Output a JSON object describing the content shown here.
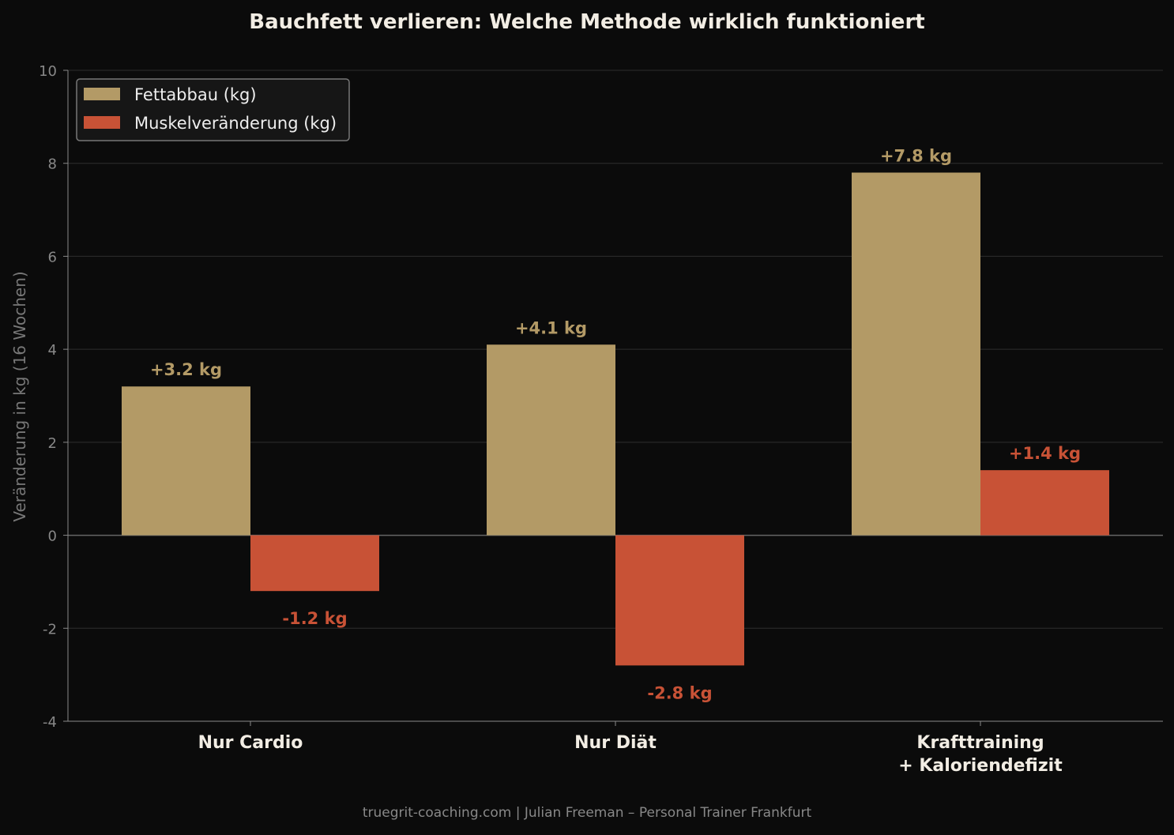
{
  "chart_data": {
    "type": "bar",
    "title": "Bauchfett verlieren: Welche Methode wirklich funktioniert",
    "ylabel": "Veränderung in kg (16 Wochen)",
    "xlabel": "",
    "ylim": [
      -4,
      10
    ],
    "yticks": [
      -4,
      -2,
      0,
      2,
      4,
      6,
      8,
      10
    ],
    "grid": true,
    "legend_position": "top-left",
    "categories": [
      [
        "Nur Cardio"
      ],
      [
        "Nur Diät"
      ],
      [
        "Krafttraining",
        "+ Kaloriendefizit"
      ]
    ],
    "series": [
      {
        "name": "Fettabbau (kg)",
        "color": "#b39a66",
        "values": [
          3.2,
          4.1,
          7.8
        ],
        "labels": [
          "+3.2 kg",
          "+4.1 kg",
          "+7.8 kg"
        ]
      },
      {
        "name": "Muskelveränderung (kg)",
        "color": "#c85236",
        "values": [
          -1.2,
          -2.8,
          1.4
        ],
        "labels": [
          "-1.2 kg",
          "-2.8 kg",
          "+1.4 kg"
        ]
      }
    ]
  },
  "footer": "truegrit-coaching.com | Julian Freeman – Personal Trainer Frankfurt"
}
